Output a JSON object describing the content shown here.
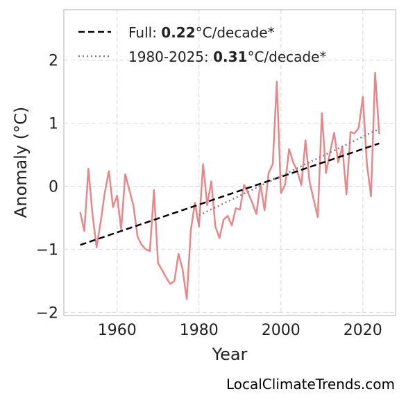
{
  "chart_data": {
    "type": "line",
    "xlabel": "Year",
    "ylabel": "Anomaly (°C)",
    "xlim": [
      1947,
      2028
    ],
    "ylim": [
      -2.05,
      2.8
    ],
    "x_ticks": [
      1960,
      1980,
      2000,
      2020
    ],
    "y_ticks": [
      -2,
      -1,
      0,
      1,
      2
    ],
    "y_tick_labels": [
      "−2",
      "−1",
      "0",
      "1",
      "2"
    ],
    "grid": true,
    "legend_position": "top-left",
    "colors": {
      "anomaly": "#e8878b",
      "full_trend": "#000000",
      "recent_trend": "#808080",
      "grid": "#dddddd",
      "frame": "#cccccc"
    },
    "series": [
      {
        "kind": "anomaly",
        "x": [
          1951,
          1952,
          1953,
          1954,
          1955,
          1956,
          1957,
          1958,
          1959,
          1960,
          1961,
          1962,
          1963,
          1964,
          1965,
          1966,
          1967,
          1968,
          1969,
          1970,
          1971,
          1972,
          1973,
          1974,
          1975,
          1976,
          1977,
          1978,
          1979,
          1980,
          1981,
          1982,
          1983,
          1984,
          1985,
          1986,
          1987,
          1988,
          1989,
          1990,
          1991,
          1992,
          1993,
          1994,
          1995,
          1996,
          1997,
          1998,
          1999,
          2000,
          2001,
          2002,
          2003,
          2004,
          2005,
          2006,
          2007,
          2008,
          2009,
          2010,
          2011,
          2012,
          2013,
          2014,
          2015,
          2016,
          2017,
          2018,
          2019,
          2020,
          2021,
          2022,
          2023,
          2024
        ],
        "y": [
          -0.41,
          -0.71,
          0.28,
          -0.45,
          -0.97,
          -0.56,
          -0.1,
          0.24,
          -0.33,
          -0.15,
          -0.68,
          0.19,
          -0.06,
          -0.31,
          -0.8,
          -0.93,
          -1.0,
          -1.03,
          -0.06,
          -1.22,
          -1.33,
          -1.45,
          -1.55,
          -1.5,
          -1.07,
          -1.32,
          -1.79,
          -0.7,
          -0.26,
          -0.64,
          0.35,
          -0.3,
          0.08,
          -0.64,
          -0.82,
          -0.53,
          -0.47,
          -0.62,
          -0.35,
          -0.37,
          0.02,
          -0.11,
          -0.26,
          -0.44,
          0.04,
          -0.38,
          0.21,
          0.35,
          1.66,
          -0.11,
          0.02,
          0.59,
          0.38,
          0.24,
          0.02,
          0.73,
          0.07,
          -0.21,
          -0.49,
          1.16,
          0.21,
          0.54,
          0.85,
          0.38,
          0.63,
          -0.13,
          0.86,
          0.84,
          0.93,
          1.42,
          0.35,
          -0.16,
          1.8,
          0.83
        ]
      },
      {
        "kind": "full_trend",
        "label": "Full: ",
        "rate": "0.22",
        "unit": "°C/decade*",
        "x": [
          1951,
          2024
        ],
        "y": [
          -0.93,
          0.68
        ]
      },
      {
        "kind": "recent_trend",
        "label": "1980-2025: ",
        "rate": "0.31",
        "unit": "°C/decade*",
        "x": [
          1980,
          2024
        ],
        "y": [
          -0.46,
          0.91
        ]
      }
    ]
  },
  "watermark": "LocalClimateTrends.com"
}
